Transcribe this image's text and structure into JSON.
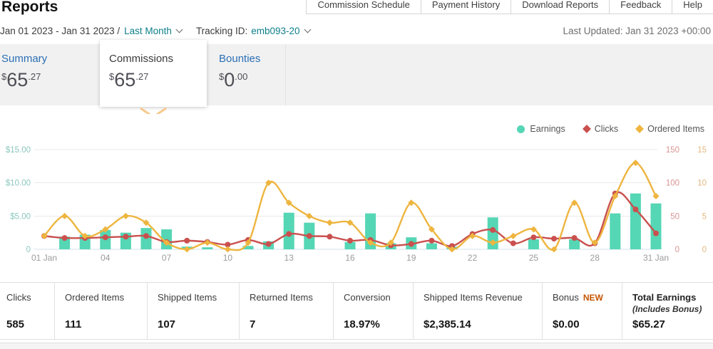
{
  "page": {
    "title": "Reports",
    "last_updated": "Last Updated: Jan 31 2023 +00:00"
  },
  "top_nav": {
    "items": [
      "Commission Schedule",
      "Payment History",
      "Download Reports",
      "Feedback",
      "Help"
    ]
  },
  "filters": {
    "date_range": "Jan 01 2023 - Jan 31 2023 /",
    "date_preset": "Last Month",
    "tracking_id_label": "Tracking ID:",
    "tracking_id": "emb093-20"
  },
  "summary_cards": [
    {
      "id": "summary",
      "label": "Summary",
      "currency": "$",
      "whole": "65",
      "cents": ".27",
      "selected": false
    },
    {
      "id": "commissions",
      "label": "Commissions",
      "currency": "$",
      "whole": "65",
      "cents": ".27",
      "selected": true
    },
    {
      "id": "bounties",
      "label": "Bounties",
      "currency": "$",
      "whole": "0",
      "cents": ".00",
      "selected": false
    }
  ],
  "colors": {
    "earnings": "#55d6b4",
    "clicks": "#c9504e",
    "ordered_items": "#eeb53f",
    "left_axis_label": "#8bc7bf",
    "clicks_axis_label": "#d99593",
    "items_axis_label": "#e3b77e",
    "gridline": "#e9e9e9",
    "baseline": "#cfe0e8",
    "x_label": "#9b9b9b",
    "selected_pointer": "#f7c98b"
  },
  "chart_data": {
    "type": "combo",
    "title": "",
    "x": [
      1,
      2,
      3,
      4,
      5,
      6,
      7,
      8,
      9,
      10,
      11,
      12,
      13,
      14,
      15,
      16,
      17,
      18,
      19,
      20,
      21,
      22,
      23,
      24,
      25,
      26,
      27,
      28,
      29,
      30,
      31
    ],
    "x_tick_days": [
      1,
      4,
      7,
      10,
      13,
      16,
      19,
      22,
      25,
      28,
      31
    ],
    "x_tick_labels": [
      "01 Jan",
      "04",
      "07",
      "10",
      "13",
      "16",
      "19",
      "22",
      "25",
      "28",
      "31 Jan"
    ],
    "grid": true,
    "legend_position": "top-right",
    "legend": [
      {
        "label": "Earnings",
        "marker": "circle"
      },
      {
        "label": "Clicks",
        "marker": "diamond"
      },
      {
        "label": "Ordered Items",
        "marker": "diamond"
      }
    ],
    "axes": {
      "left": {
        "name": "Earnings ($)",
        "ticks_top_to_bottom": [
          "$15.00",
          "$10.00",
          "$5.00",
          "0"
        ],
        "range": [
          0,
          15
        ]
      },
      "clicks": {
        "name": "Clicks",
        "ticks_top_to_bottom": [
          "150",
          "100",
          "50",
          "0"
        ],
        "range": [
          0,
          150
        ]
      },
      "items": {
        "name": "Ordered Items",
        "ticks_top_to_bottom": [
          "15",
          "10",
          "5",
          "0"
        ],
        "range": [
          0,
          15
        ]
      }
    },
    "series": [
      {
        "name": "Earnings",
        "type": "bar",
        "axis": "left",
        "values": [
          0,
          1.9,
          2.2,
          2.9,
          2.5,
          3.2,
          3.0,
          0.4,
          0.3,
          0,
          0.5,
          1.2,
          5.5,
          4.0,
          0,
          1.1,
          5.4,
          0.9,
          1.8,
          0.9,
          0.4,
          0,
          4.8,
          0,
          1.5,
          0,
          1.5,
          0,
          5.4,
          8.4,
          6.9
        ]
      },
      {
        "name": "Clicks",
        "type": "line",
        "axis": "clicks",
        "values": [
          20,
          17,
          17,
          18,
          19,
          20,
          11,
          13,
          11,
          7,
          14,
          8,
          23,
          20,
          19,
          13,
          14,
          6,
          8,
          13,
          5,
          23,
          29,
          9,
          18,
          16,
          17,
          9,
          84,
          60,
          24
        ]
      },
      {
        "name": "Ordered Items",
        "type": "line",
        "axis": "items",
        "values": [
          2,
          5,
          2,
          3,
          5,
          4,
          1,
          0,
          1,
          0,
          1,
          10,
          7,
          5,
          4,
          4,
          1,
          1,
          7,
          3,
          0,
          2,
          1,
          2,
          3,
          0,
          7,
          1,
          8,
          13,
          8
        ]
      }
    ]
  },
  "stats": {
    "cells": [
      {
        "label": "Clicks",
        "value": "585"
      },
      {
        "label": "Ordered Items",
        "value": "111"
      },
      {
        "label": "Shipped Items",
        "value": "107"
      },
      {
        "label": "Returned Items",
        "value": "7"
      },
      {
        "label": "Conversion",
        "value": "18.97%"
      },
      {
        "label": "Shipped Items Revenue",
        "value": "$2,385.14"
      },
      {
        "label": "Bonus",
        "badge": "NEW",
        "value": "$0.00"
      },
      {
        "label": "Total Earnings",
        "sublabel": "(Includes Bonus)",
        "value": "$65.27",
        "bold": true
      }
    ]
  }
}
